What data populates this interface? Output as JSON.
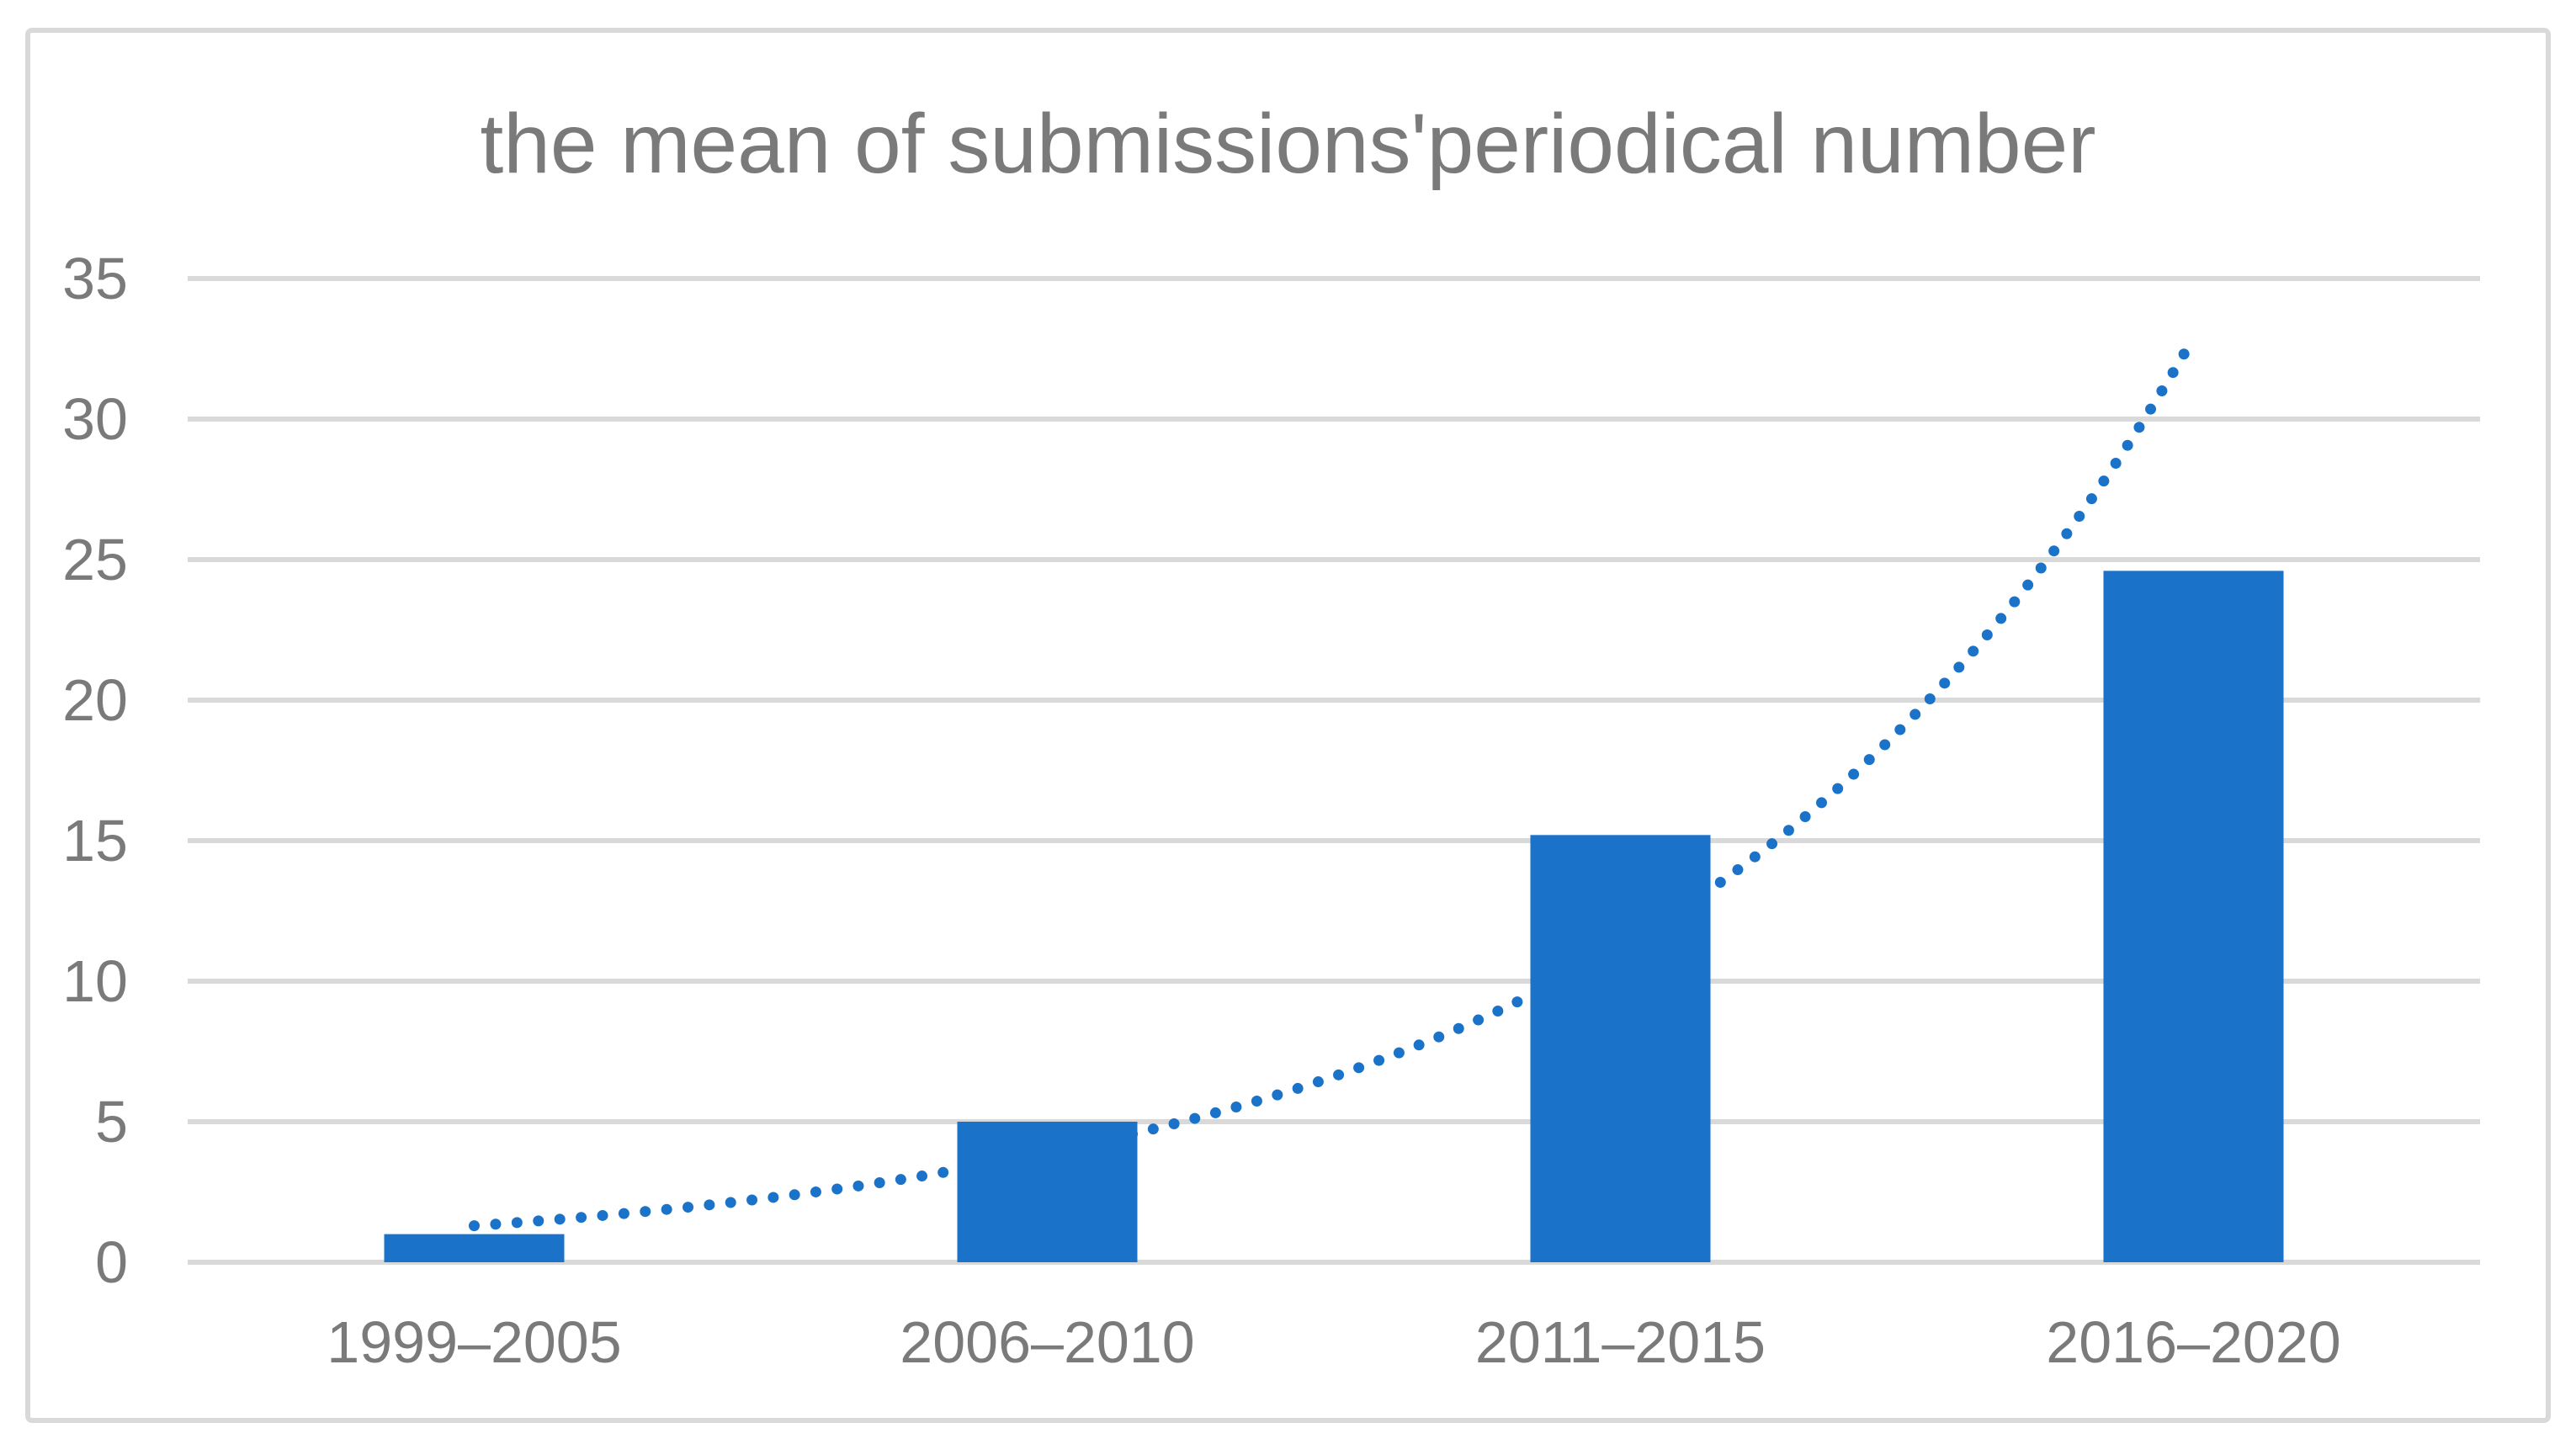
{
  "chart_data": {
    "type": "bar",
    "title": "the mean of submissions'periodical number",
    "categories": [
      "1999–2005",
      "2006–2010",
      "2011–2015",
      "2016–2020"
    ],
    "values": [
      1.0,
      5.0,
      15.2,
      24.6
    ],
    "yticks": [
      0,
      5,
      10,
      15,
      20,
      25,
      30,
      35
    ],
    "ylim": [
      0,
      35
    ],
    "xlabel": "",
    "ylabel": "",
    "grid": "horizontal-only",
    "legend": "none",
    "trendline": {
      "style": "dotted-exponential",
      "values_at_categories": [
        1.3,
        3.9,
        11.2,
        32.9
      ]
    },
    "colors": {
      "bar": "#1A73C8",
      "trendline": "#1A73C8",
      "gridline": "#D9D9D9",
      "frame_border": "#D9D9D9",
      "text": "#7A7A7A",
      "background": "#FFFFFF"
    }
  }
}
